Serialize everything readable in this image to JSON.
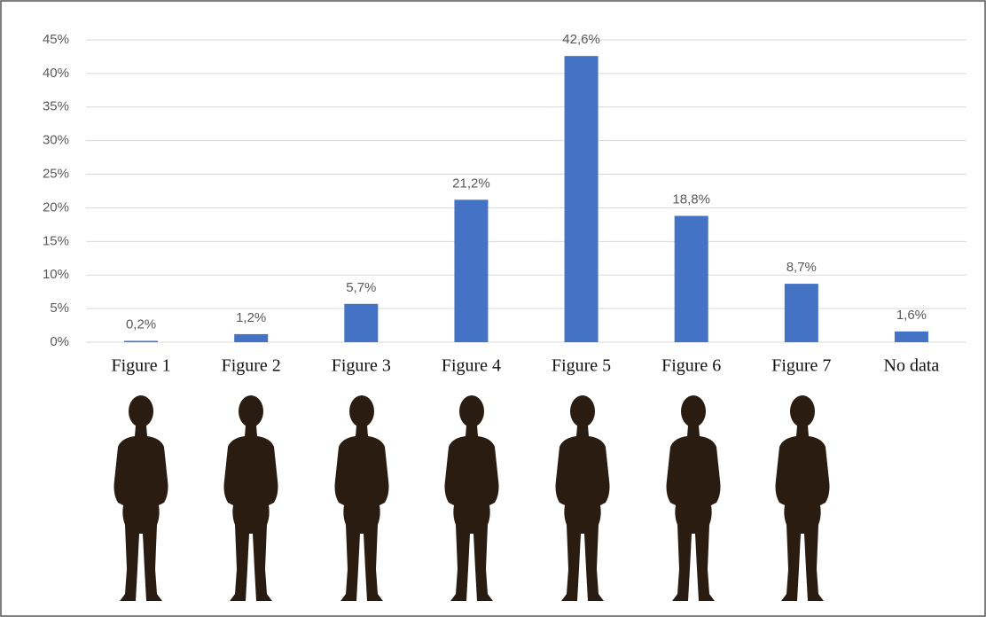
{
  "chart_data": {
    "type": "bar",
    "categories": [
      "Figure 1",
      "Figure 2",
      "Figure 3",
      "Figure 4",
      "Figure 5",
      "Figure 6",
      "Figure 7",
      "No data"
    ],
    "values": [
      0.2,
      1.2,
      5.7,
      21.2,
      42.6,
      18.8,
      8.7,
      1.6
    ],
    "value_labels": [
      "0,2%",
      "1,2%",
      "5,7%",
      "21,2%",
      "42,6%",
      "18,8%",
      "8,7%",
      "1,6%"
    ],
    "color": "#4472c4",
    "ylim": [
      0,
      45
    ],
    "yticks": [
      {
        "value": 0,
        "label": "0%"
      },
      {
        "value": 5,
        "label": "5%"
      },
      {
        "value": 10,
        "label": "10%"
      },
      {
        "value": 15,
        "label": "15%"
      },
      {
        "value": 20,
        "label": "20%"
      },
      {
        "value": 25,
        "label": "25%"
      },
      {
        "value": 30,
        "label": "30%"
      },
      {
        "value": 35,
        "label": "35%"
      },
      {
        "value": 40,
        "label": "40%"
      },
      {
        "value": 45,
        "label": "45%"
      }
    ],
    "grid": true
  }
}
